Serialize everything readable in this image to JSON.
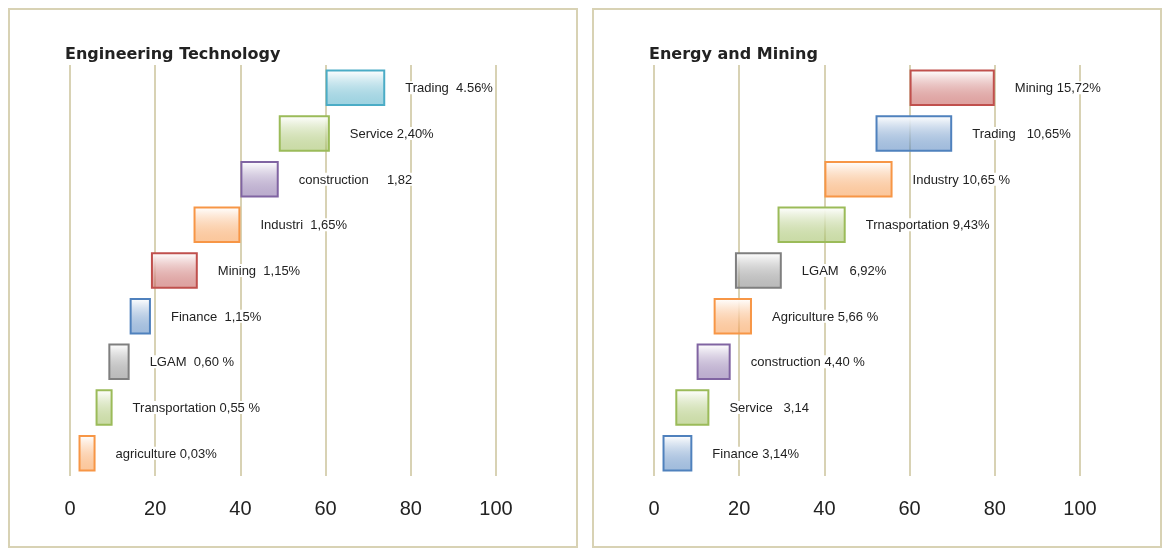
{
  "chart_data": [
    {
      "type": "bar",
      "title": "Engineering Technology",
      "orientation": "horizontal",
      "categories": [
        null,
        null,
        null,
        null,
        null,
        null,
        null,
        null,
        null
      ],
      "base": [
        60,
        49,
        40,
        29,
        19,
        14,
        9,
        6,
        2
      ],
      "values": [
        14,
        12,
        9,
        11,
        11,
        5,
        5,
        4,
        4
      ],
      "colors": [
        "#4bacc6",
        "#9bbb59",
        "#8064a2",
        "#f79646",
        "#c0504d",
        "#4f81bd",
        "#7f7f7f",
        "#9bbb59",
        "#f79646"
      ],
      "value_labels": [
        "Trading  4.56%",
        "Service 2,40%",
        "construction     1,82",
        "Industri  1,65%",
        "Mining  1,15%",
        "Finance  1,15%",
        "LGAM  0,60 %",
        "Transportation 0,55 %",
        "agriculture 0,03%"
      ],
      "xlim": [
        0,
        100
      ],
      "xticks": [
        0,
        20,
        40,
        60,
        80,
        100
      ],
      "grid": "x",
      "tick_labels": "x"
    },
    {
      "type": "bar",
      "title": "Energy and Mining",
      "orientation": "horizontal",
      "categories": [
        null,
        null,
        null,
        null,
        null,
        null,
        null,
        null,
        null
      ],
      "base": [
        60,
        52,
        40,
        29,
        19,
        14,
        10,
        5,
        2
      ],
      "values": [
        20,
        18,
        16,
        16,
        11,
        9,
        8,
        8,
        7
      ],
      "colors": [
        "#c0504d",
        "#4f81bd",
        "#f79646",
        "#9bbb59",
        "#7f7f7f",
        "#f79646",
        "#8064a2",
        "#9bbb59",
        "#4f81bd"
      ],
      "value_labels": [
        "Mining 15,72%",
        "Trading   10,65%",
        "Industry 10,65 %",
        "Trnasportation 9,43%",
        "LGAM   6,92%",
        "Agriculture 5,66 %",
        "construction 4,40 %",
        "Service   3,14",
        "Finance 3,14%"
      ],
      "xlim": [
        0,
        100
      ],
      "xticks": [
        0,
        20,
        40,
        60,
        80,
        100
      ],
      "grid": "x",
      "tick_labels": "x"
    }
  ]
}
